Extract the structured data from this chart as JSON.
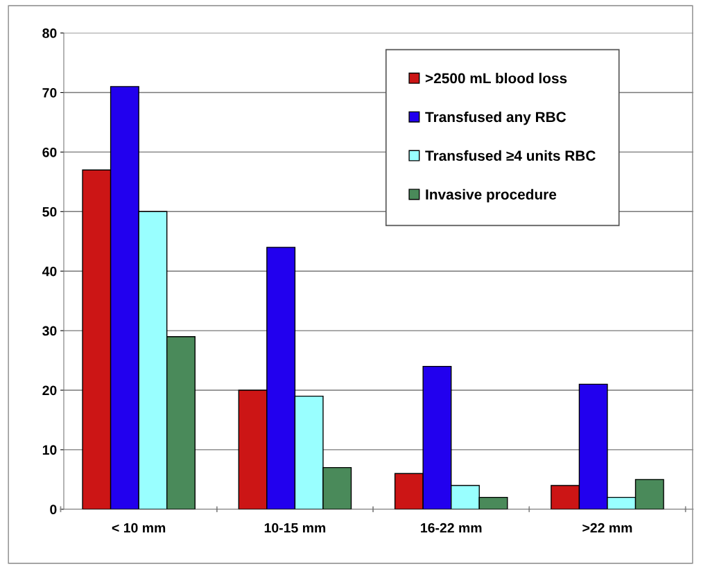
{
  "chart_data": {
    "type": "bar",
    "categories": [
      "< 10 mm",
      "10-15 mm",
      "16-22 mm",
      ">22 mm"
    ],
    "series": [
      {
        "name": ">2500 mL blood loss",
        "color": "#cc1515",
        "values": [
          57,
          20,
          6,
          4
        ]
      },
      {
        "name": "Transfused any RBC",
        "color": "#2200ee",
        "values": [
          71,
          44,
          24,
          21
        ]
      },
      {
        "name": "Transfused ≥4 units RBC",
        "color": "#99ffff",
        "values": [
          50,
          19,
          4,
          2
        ]
      },
      {
        "name": "Invasive procedure",
        "color": "#4a8a5a",
        "values": [
          29,
          7,
          2,
          5
        ]
      }
    ],
    "ylim": [
      0,
      80
    ],
    "yticks": [
      0,
      10,
      20,
      30,
      40,
      50,
      60,
      70,
      80
    ],
    "grid": "y",
    "legend": "top right"
  }
}
